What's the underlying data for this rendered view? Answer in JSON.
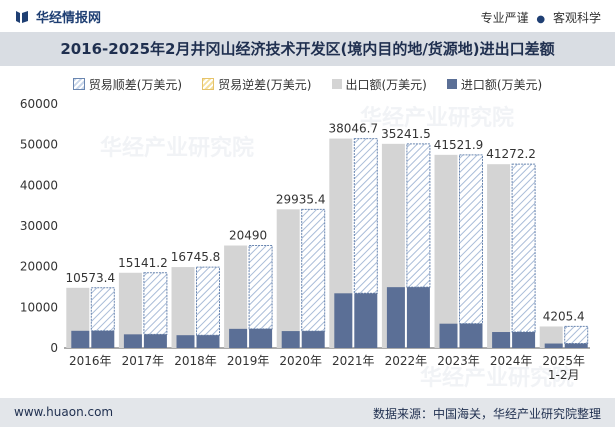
{
  "header": {
    "brand_name": "华经情报网",
    "tagline_left": "专业严谨",
    "tagline_right": "客观科学"
  },
  "title": "2016-2025年2月井冈山经济技术开发区(境内目的地/货源地)进出口差额",
  "legend": [
    {
      "label": "贸易顺差(万美元)",
      "style": "hatch-blue"
    },
    {
      "label": "贸易逆差(万美元)",
      "style": "hatch-yellow"
    },
    {
      "label": "出口额(万美元)",
      "style": "grey"
    },
    {
      "label": "进口额(万美元)",
      "style": "navy"
    }
  ],
  "watermark": "华经产业研究院",
  "chart_data": {
    "type": "bar",
    "categories": [
      "2016年",
      "2017年",
      "2018年",
      "2019年",
      "2020年",
      "2021年",
      "2022年",
      "2023年",
      "2024年",
      "2025年\n1-2月"
    ],
    "series": [
      {
        "name": "贸易顺差(万美元)",
        "values": [
          10573.4,
          15141.2,
          16745.8,
          20490,
          29935.4,
          38046.7,
          35241.5,
          41521.9,
          41272.2,
          4205.4
        ]
      },
      {
        "name": "贸易逆差(万美元)",
        "values": [
          0,
          0,
          0,
          0,
          0,
          0,
          0,
          0,
          0,
          0
        ]
      },
      {
        "name": "出口额(万美元)",
        "values": [
          14800,
          18500,
          19900,
          25200,
          34100,
          51500,
          50200,
          47500,
          45200,
          5300
        ]
      },
      {
        "name": "进口额(万美元)",
        "values": [
          4230,
          3360,
          3150,
          4710,
          4160,
          13450,
          14960,
          5980,
          3930,
          1100
        ]
      }
    ],
    "data_labels": [
      "10573.4",
      "15141.2",
      "16745.8",
      "20490",
      "29935.4",
      "38046.7",
      "35241.5",
      "41521.9",
      "41272.2",
      "4205.4"
    ],
    "ylim": [
      0,
      60000
    ],
    "yticks": [
      "0",
      "10000",
      "20000",
      "30000",
      "40000",
      "50000",
      "60000"
    ],
    "colors": {
      "surplus": "#6a86b0",
      "deficit": "#e6c36a",
      "export": "#d4d4d4",
      "import": "#5b6f96"
    }
  },
  "footer": {
    "url": "www.huaon.com",
    "source": "数据来源：中国海关，华经产业研究院整理"
  }
}
